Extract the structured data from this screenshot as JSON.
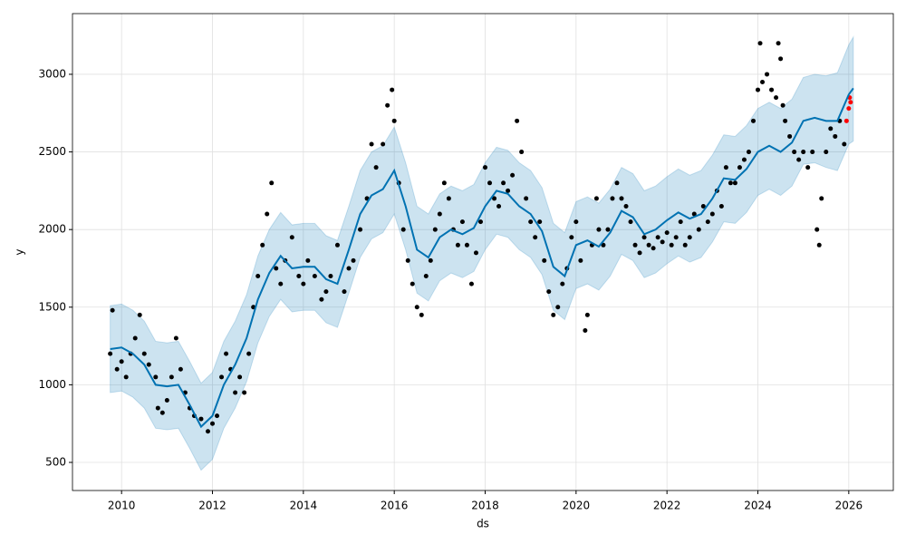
{
  "chart_data": {
    "type": "line",
    "xlabel": "ds",
    "ylabel": "y",
    "xlim": [
      2008.92,
      2026.98
    ],
    "ylim": [
      319,
      3391
    ],
    "xticks": [
      2010,
      2012,
      2014,
      2016,
      2018,
      2020,
      2022,
      2024,
      2026
    ],
    "yticks": [
      500,
      1000,
      1500,
      2000,
      2500,
      3000
    ],
    "grid": true,
    "x": [
      2009.75,
      2010,
      2010.25,
      2010.5,
      2010.75,
      2011,
      2011.25,
      2011.5,
      2011.75,
      2012,
      2012.25,
      2012.5,
      2012.75,
      2013,
      2013.25,
      2013.5,
      2013.75,
      2014,
      2014.25,
      2014.5,
      2014.75,
      2015,
      2015.25,
      2015.5,
      2015.75,
      2016,
      2016.25,
      2016.5,
      2016.75,
      2017,
      2017.25,
      2017.5,
      2017.75,
      2018,
      2018.25,
      2018.5,
      2018.75,
      2019,
      2019.25,
      2019.5,
      2019.75,
      2020,
      2020.25,
      2020.5,
      2020.75,
      2021,
      2021.25,
      2021.5,
      2021.75,
      2022,
      2022.25,
      2022.5,
      2022.75,
      2023,
      2023.25,
      2023.5,
      2023.75,
      2024,
      2024.25,
      2024.5,
      2024.75,
      2025,
      2025.25,
      2025.5,
      2025.75,
      2026,
      2026.1
    ],
    "series": [
      {
        "color": "#0072b2",
        "values": [
          1230,
          1240,
          1200,
          1130,
          1000,
          990,
          1000,
          870,
          730,
          800,
          1000,
          1130,
          1300,
          1550,
          1720,
          1830,
          1750,
          1760,
          1760,
          1680,
          1650,
          1870,
          2100,
          2220,
          2260,
          2380,
          2150,
          1870,
          1820,
          1950,
          2000,
          1970,
          2010,
          2150,
          2250,
          2230,
          2150,
          2100,
          1990,
          1760,
          1700,
          1900,
          1930,
          1890,
          1980,
          2120,
          2080,
          1970,
          2000,
          2060,
          2110,
          2070,
          2100,
          2200,
          2330,
          2320,
          2390,
          2500,
          2540,
          2500,
          2560,
          2700,
          2720,
          2700,
          2700,
          2870,
          2910
        ]
      }
    ],
    "band": {
      "color": "#0072b2",
      "upper": [
        1510,
        1520,
        1480,
        1410,
        1280,
        1270,
        1280,
        1150,
        1010,
        1080,
        1280,
        1410,
        1580,
        1830,
        2000,
        2110,
        2030,
        2040,
        2040,
        1960,
        1930,
        2150,
        2380,
        2500,
        2540,
        2660,
        2430,
        2150,
        2100,
        2230,
        2280,
        2250,
        2290,
        2430,
        2530,
        2510,
        2430,
        2380,
        2270,
        2040,
        1980,
        2180,
        2210,
        2170,
        2260,
        2400,
        2360,
        2250,
        2280,
        2340,
        2390,
        2350,
        2380,
        2480,
        2610,
        2600,
        2670,
        2780,
        2820,
        2780,
        2840,
        2980,
        3000,
        2990,
        3010,
        3190,
        3240
      ],
      "lower": [
        950,
        960,
        920,
        850,
        720,
        710,
        720,
        590,
        450,
        520,
        720,
        850,
        1020,
        1270,
        1440,
        1550,
        1470,
        1480,
        1480,
        1400,
        1370,
        1590,
        1820,
        1940,
        1980,
        2100,
        1870,
        1590,
        1540,
        1670,
        1720,
        1690,
        1730,
        1870,
        1970,
        1950,
        1870,
        1820,
        1710,
        1480,
        1420,
        1620,
        1650,
        1610,
        1700,
        1840,
        1800,
        1690,
        1720,
        1780,
        1830,
        1790,
        1820,
        1920,
        2050,
        2040,
        2110,
        2220,
        2260,
        2220,
        2280,
        2420,
        2430,
        2400,
        2380,
        2550,
        2570
      ]
    },
    "points": [
      {
        "color": "#000000",
        "x": [
          2009.75,
          2009.8,
          2009.9,
          2010,
          2010.1,
          2010.2,
          2010.3,
          2010.4,
          2010.5,
          2010.6,
          2010.75,
          2010.8,
          2010.9,
          2011,
          2011.1,
          2011.2,
          2011.3,
          2011.4,
          2011.5,
          2011.6,
          2011.75,
          2011.9,
          2012,
          2012.1,
          2012.2,
          2012.3,
          2012.4,
          2012.5,
          2012.6,
          2012.7,
          2012.8,
          2012.9,
          2013,
          2013.1,
          2013.2,
          2013.3,
          2013.4,
          2013.5,
          2013.6,
          2013.75,
          2013.9,
          2014,
          2014.1,
          2014.25,
          2014.4,
          2014.5,
          2014.6,
          2014.75,
          2014.9,
          2015,
          2015.1,
          2015.25,
          2015.4,
          2015.5,
          2015.6,
          2015.75,
          2015.85,
          2015.95,
          2016,
          2016.1,
          2016.2,
          2016.3,
          2016.4,
          2016.5,
          2016.6,
          2016.7,
          2016.8,
          2016.9,
          2017,
          2017.1,
          2017.2,
          2017.3,
          2017.4,
          2017.5,
          2017.6,
          2017.7,
          2017.8,
          2017.9,
          2018,
          2018.1,
          2018.2,
          2018.3,
          2018.4,
          2018.5,
          2018.6,
          2018.7,
          2018.8,
          2018.9,
          2019,
          2019.1,
          2019.2,
          2019.3,
          2019.4,
          2019.5,
          2019.6,
          2019.7,
          2019.8,
          2019.9,
          2020,
          2020.1,
          2020.2,
          2020.25,
          2020.35,
          2020.45,
          2020.5,
          2020.6,
          2020.7,
          2020.8,
          2020.9,
          2021,
          2021.1,
          2021.2,
          2021.3,
          2021.4,
          2021.5,
          2021.6,
          2021.7,
          2021.8,
          2021.9,
          2022,
          2022.1,
          2022.2,
          2022.3,
          2022.4,
          2022.5,
          2022.6,
          2022.7,
          2022.8,
          2022.9,
          2023,
          2023.1,
          2023.2,
          2023.3,
          2023.4,
          2023.5,
          2023.6,
          2023.7,
          2023.8,
          2023.9,
          2024,
          2024.05,
          2024.1,
          2024.2,
          2024.3,
          2024.4,
          2024.45,
          2024.5,
          2024.55,
          2024.6,
          2024.7,
          2024.8,
          2024.9,
          2025,
          2025.1,
          2025.2,
          2025.3,
          2025.35,
          2025.4,
          2025.5,
          2025.6,
          2025.7,
          2025.8,
          2025.9
        ],
        "values": [
          1200,
          1480,
          1100,
          1150,
          1050,
          1200,
          1300,
          1450,
          1200,
          1130,
          1050,
          850,
          820,
          900,
          1050,
          1300,
          1100,
          950,
          850,
          800,
          780,
          700,
          750,
          800,
          1050,
          1200,
          1100,
          950,
          1050,
          950,
          1200,
          1500,
          1700,
          1900,
          2100,
          2300,
          1750,
          1650,
          1800,
          1950,
          1700,
          1650,
          1800,
          1700,
          1550,
          1600,
          1700,
          1900,
          1600,
          1750,
          1800,
          2000,
          2200,
          2550,
          2400,
          2550,
          2800,
          2900,
          2700,
          2300,
          2000,
          1800,
          1650,
          1500,
          1450,
          1700,
          1800,
          2000,
          2100,
          2300,
          2200,
          2000,
          1900,
          2050,
          1900,
          1650,
          1850,
          2050,
          2400,
          2300,
          2200,
          2150,
          2300,
          2250,
          2350,
          2700,
          2500,
          2200,
          2050,
          1950,
          2050,
          1800,
          1600,
          1450,
          1500,
          1650,
          1750,
          1950,
          2050,
          1800,
          1350,
          1450,
          1900,
          2200,
          2000,
          1900,
          2000,
          2200,
          2300,
          2200,
          2150,
          2050,
          1900,
          1850,
          1950,
          1900,
          1880,
          1950,
          1920,
          1980,
          1900,
          1950,
          2050,
          1900,
          1950,
          2100,
          2000,
          2150,
          2050,
          2100,
          2250,
          2150,
          2400,
          2300,
          2300,
          2400,
          2450,
          2500,
          2700,
          2900,
          3200,
          2950,
          3000,
          2900,
          2850,
          3200,
          3100,
          2800,
          2700,
          2600,
          2500,
          2450,
          2500,
          2400,
          2500,
          2000,
          1900,
          2200,
          2500,
          2650,
          2600,
          2700,
          2550
        ]
      },
      {
        "color": "#ff0000",
        "x": [
          2025.95,
          2026,
          2026.02,
          2026.04
        ],
        "values": [
          2700,
          2780,
          2850,
          2820
        ]
      }
    ]
  }
}
